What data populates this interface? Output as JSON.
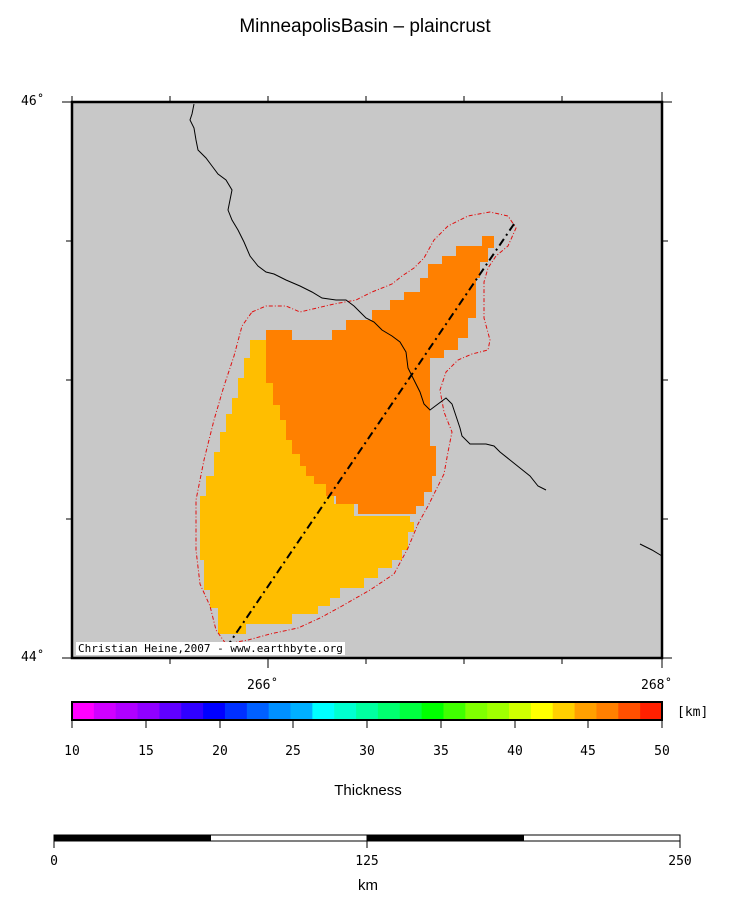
{
  "title": "MinneapolisBasin – plaincrust",
  "map": {
    "lat_labels": [
      "46˚",
      "44˚"
    ],
    "lon_labels": [
      "266˚",
      "268˚"
    ],
    "credit": "Christian Heine,2007 - www.earthbyte.org",
    "colors": {
      "background": "#c8c8c8",
      "thickness_44_46": "#ffbe00",
      "thickness_46_48": "#ff8000",
      "outline": "#e01010",
      "profile": "#000000",
      "river": "#000000"
    }
  },
  "colorbar": {
    "ticks": [
      "10",
      "15",
      "20",
      "25",
      "30",
      "35",
      "40",
      "45",
      "50"
    ],
    "unit": "[km]",
    "label": "Thickness",
    "colors": [
      "#ff00ff",
      "#d000ff",
      "#b000ff",
      "#9000ff",
      "#6000ff",
      "#3000ff",
      "#0000ff",
      "#0030ff",
      "#0060ff",
      "#0090ff",
      "#00b0ff",
      "#00ffff",
      "#00ffd0",
      "#00ffa0",
      "#00ff70",
      "#00ff40",
      "#00ff00",
      "#40ff00",
      "#80ff00",
      "#a0ff00",
      "#d0ff00",
      "#ffff00",
      "#ffd000",
      "#ffa000",
      "#ff8000",
      "#ff5000",
      "#ff2000"
    ]
  },
  "scalebar": {
    "ticks": [
      "0",
      "125",
      "250"
    ],
    "unit": "km"
  }
}
